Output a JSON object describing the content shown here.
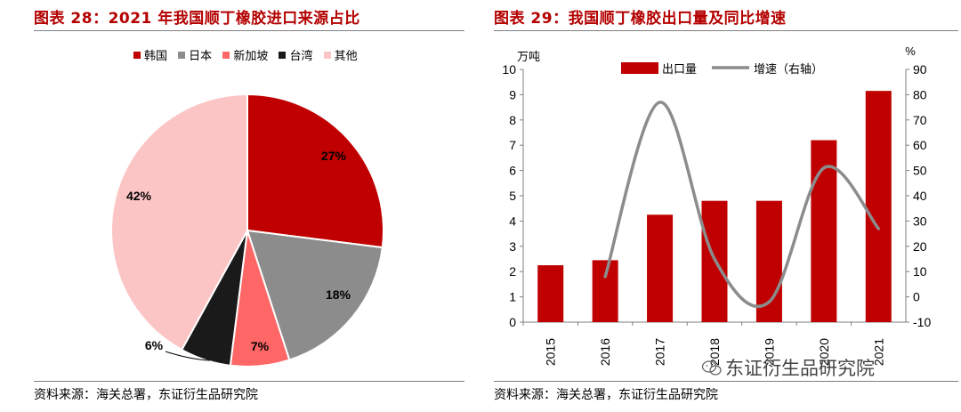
{
  "left_panel": {
    "title": "图表 28：2021 年我国顺丁橡胶进口来源占比",
    "source": "资料来源：海关总署，东证衍生品研究院"
  },
  "right_panel": {
    "title": "图表 29：我国顺丁橡胶出口量及同比增速",
    "source": "资料来源：海关总署，东证衍生品研究院"
  },
  "watermark": {
    "text": "东证衍生品研究院",
    "icon": "wechat-icon"
  },
  "chart_data": [
    {
      "type": "pie",
      "labels": [
        "韩国",
        "日本",
        "新加坡",
        "台湾",
        "其他"
      ],
      "values": [
        27,
        18,
        7,
        6,
        42
      ],
      "value_labels": [
        "27%",
        "18%",
        "7%",
        "6%",
        "42%"
      ],
      "colors": [
        "#c00000",
        "#8c8c8c",
        "#ff6666",
        "#1a1a1a",
        "#fcc5c5"
      ],
      "legend": "top"
    },
    {
      "type": "bar",
      "categories": [
        "2015",
        "2016",
        "2017",
        "2018",
        "2019",
        "2020",
        "2021"
      ],
      "series": [
        {
          "name": "出口量",
          "type": "bar",
          "axis": "left",
          "color": "#c00000",
          "values": [
            2.25,
            2.45,
            4.25,
            4.8,
            4.8,
            7.2,
            9.15
          ]
        },
        {
          "name": "增速（右轴）",
          "type": "line",
          "axis": "right",
          "color": "#8c8c8c",
          "values": [
            null,
            8,
            77,
            15,
            -2,
            51,
            27
          ]
        }
      ],
      "ylabel_left": "万吨",
      "ylabel_right": "%",
      "ylim_left": [
        0,
        10
      ],
      "ylim_right": [
        -10,
        90
      ],
      "yticks_left": [
        0,
        1,
        2,
        3,
        4,
        5,
        6,
        7,
        8,
        9,
        10
      ],
      "yticks_right": [
        -10,
        0,
        10,
        20,
        30,
        40,
        50,
        60,
        70,
        80,
        90
      ],
      "grid": false,
      "legend": "top"
    }
  ]
}
